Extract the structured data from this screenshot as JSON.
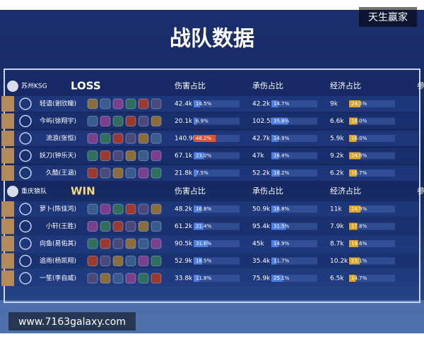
{
  "header": {
    "title": "战队数据",
    "watermark": "天生赢家"
  },
  "columns": [
    "伤害占比",
    "承伤占比",
    "经济占比",
    "参"
  ],
  "teams": [
    {
      "name": "苏州KSG",
      "result": "LOSS",
      "players": [
        {
          "name": "轻语(谢欣瞳)",
          "stats": [
            {
              "value": "42.4k",
              "pct": 14.5,
              "pct_label": "14.5%"
            },
            {
              "value": "42.2k",
              "pct": 14.7,
              "pct_label": "14.7%"
            },
            {
              "value": "9k",
              "pct": 24.5,
              "pct_label": "24.5%"
            }
          ]
        },
        {
          "name": "今屿(徐翔宇)",
          "stats": [
            {
              "value": "20.1k",
              "pct": 6.9,
              "pct_label": "6.9%"
            },
            {
              "value": "102.5k",
              "pct": 35.8,
              "pct_label": "35.8%"
            },
            {
              "value": "6.6k",
              "pct": 18.0,
              "pct_label": "18.0%"
            }
          ]
        },
        {
          "name": "流浪(张恒)",
          "stats": [
            {
              "value": "140.9k",
              "pct": 48.2,
              "pct_label": "48.2%"
            },
            {
              "value": "42.7k",
              "pct": 14.9,
              "pct_label": "14.9%"
            },
            {
              "value": "5.9k",
              "pct": 16.0,
              "pct_label": "16.0%"
            }
          ]
        },
        {
          "name": "妖刀(钟乐天)",
          "stats": [
            {
              "value": "67.1k",
              "pct": 23.0,
              "pct_label": "23.0%"
            },
            {
              "value": "47k",
              "pct": 16.4,
              "pct_label": "16.4%"
            },
            {
              "value": "9.2k",
              "pct": 24.8,
              "pct_label": "24.8%"
            }
          ]
        },
        {
          "name": "久酷(王涵)",
          "stats": [
            {
              "value": "21.8k",
              "pct": 7.5,
              "pct_label": "7.5%"
            },
            {
              "value": "52.2k",
              "pct": 18.2,
              "pct_label": "18.2%"
            },
            {
              "value": "6.2k",
              "pct": 16.7,
              "pct_label": "16.7%"
            }
          ]
        }
      ]
    },
    {
      "name": "重庆狼队",
      "result": "WIN",
      "players": [
        {
          "name": "萝卜(陈佳鸿)",
          "stats": [
            {
              "value": "48.2k",
              "pct": 16.8,
              "pct_label": "16.8%"
            },
            {
              "value": "50.9k",
              "pct": 16.8,
              "pct_label": "16.8%"
            },
            {
              "value": "11k",
              "pct": 24.9,
              "pct_label": "24.9%"
            }
          ]
        },
        {
          "name": "小轩(王胜)",
          "stats": [
            {
              "value": "61.2k",
              "pct": 21.4,
              "pct_label": "21.4%"
            },
            {
              "value": "95.4k",
              "pct": 31.5,
              "pct_label": "31.5%"
            },
            {
              "value": "7.9k",
              "pct": 17.8,
              "pct_label": "17.8%"
            }
          ]
        },
        {
          "name": "向鱼(易佑其)",
          "stats": [
            {
              "value": "90.5k",
              "pct": 31.6,
              "pct_label": "31.6%"
            },
            {
              "value": "45k",
              "pct": 14.9,
              "pct_label": "14.9%"
            },
            {
              "value": "8.7k",
              "pct": 19.6,
              "pct_label": "19.6%"
            }
          ]
        },
        {
          "name": "追雨(杨凯翔)",
          "stats": [
            {
              "value": "52.9k",
              "pct": 18.5,
              "pct_label": "18.5%"
            },
            {
              "value": "35.4k",
              "pct": 11.7,
              "pct_label": "11.7%"
            },
            {
              "value": "10.2k",
              "pct": 23.1,
              "pct_label": "23.1%"
            }
          ]
        },
        {
          "name": "一笙(李自威)",
          "stats": [
            {
              "value": "33.8k",
              "pct": 11.8,
              "pct_label": "11.8%"
            },
            {
              "value": "75.9k",
              "pct": 25.1,
              "pct_label": "25.1%"
            },
            {
              "value": "6.5k",
              "pct": 14.7,
              "pct_label": "14.7%"
            }
          ]
        }
      ]
    }
  ],
  "footer": {
    "url": "www.7163galaxy.com"
  }
}
